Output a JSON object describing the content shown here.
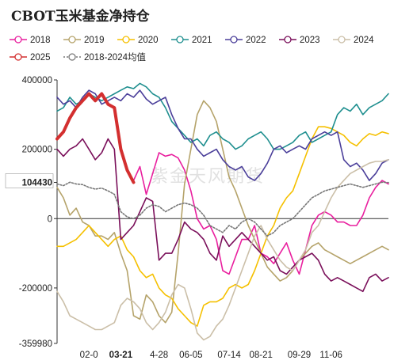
{
  "title": "CBOT玉米基金净持仓",
  "watermark": "紫金天风期货",
  "chart_data": {
    "type": "line",
    "ylim": [
      -359980,
      400000
    ],
    "y_ticks": [
      400000,
      200000,
      104430,
      0,
      -200000,
      -359980
    ],
    "y_tick_labels": [
      "400000",
      "200000",
      "104430",
      "0",
      "-200000",
      "-359980"
    ],
    "highlight_y_label": "104430",
    "highlight_y_color": "#d32f2f",
    "x_range": [
      0,
      52
    ],
    "x_ticks": [
      {
        "label": "02-0",
        "x": 5
      },
      {
        "label": "03-21",
        "x": 10,
        "highlight": true
      },
      {
        "label": "4-28",
        "x": 16
      },
      {
        "label": "06-05",
        "x": 21
      },
      {
        "label": "07-14",
        "x": 27
      },
      {
        "label": "08-21",
        "x": 32
      },
      {
        "label": "09-29",
        "x": 38
      },
      {
        "label": "11-06",
        "x": 43
      }
    ],
    "legend_placement": "top",
    "grid": false,
    "series": [
      {
        "name": "2018",
        "color": "#e91e9e",
        "dash": "",
        "values": [
          null,
          null,
          null,
          null,
          null,
          null,
          null,
          null,
          null,
          null,
          null,
          null,
          110000,
          150000,
          70000,
          130000,
          190000,
          180000,
          185000,
          175000,
          140000,
          80000,
          0,
          -30000,
          -20000,
          -60000,
          -150000,
          -160000,
          -110000,
          -60000,
          -60000,
          -20000,
          -100000,
          -110000,
          -130000,
          -100000,
          -70000,
          -120000,
          -160000,
          -90000,
          -20000,
          10000,
          20000,
          10000,
          -10000,
          -10000,
          -20000,
          -20000,
          10000,
          60000,
          90000,
          110000,
          100000
        ]
      },
      {
        "name": "2019",
        "color": "#b5a36a",
        "dash": "",
        "values": [
          90000,
          60000,
          10000,
          30000,
          -10000,
          -20000,
          -50000,
          -50000,
          -60000,
          -40000,
          -100000,
          -150000,
          -280000,
          -290000,
          -220000,
          -240000,
          -280000,
          -300000,
          -270000,
          -100000,
          100000,
          200000,
          300000,
          340000,
          320000,
          280000,
          200000,
          120000,
          80000,
          30000,
          -20000,
          -60000,
          -100000,
          -140000,
          -160000,
          -180000,
          -170000,
          -150000,
          -120000,
          -100000,
          -80000,
          -70000,
          -90000,
          -100000,
          -110000,
          -120000,
          -130000,
          -120000,
          -110000,
          -100000,
          -90000,
          -80000,
          -90000
        ]
      },
      {
        "name": "2020",
        "color": "#f5c000",
        "dash": "",
        "values": [
          -80000,
          -80000,
          -70000,
          -60000,
          -40000,
          -20000,
          -40000,
          -60000,
          -80000,
          -60000,
          -50000,
          -90000,
          -110000,
          -150000,
          -170000,
          -160000,
          -200000,
          -220000,
          -230000,
          -260000,
          -280000,
          -300000,
          -310000,
          -250000,
          -240000,
          -240000,
          -230000,
          -200000,
          -190000,
          -200000,
          -190000,
          -150000,
          -100000,
          -50000,
          -20000,
          30000,
          60000,
          80000,
          130000,
          180000,
          230000,
          265000,
          265000,
          260000,
          250000,
          240000,
          220000,
          210000,
          230000,
          245000,
          240000,
          250000,
          245000
        ]
      },
      {
        "name": "2021",
        "color": "#1f8f8f",
        "dash": "",
        "values": [
          310000,
          320000,
          350000,
          330000,
          340000,
          360000,
          350000,
          340000,
          350000,
          360000,
          370000,
          380000,
          375000,
          390000,
          380000,
          360000,
          350000,
          320000,
          280000,
          260000,
          240000,
          220000,
          230000,
          210000,
          240000,
          250000,
          230000,
          220000,
          200000,
          210000,
          230000,
          240000,
          250000,
          230000,
          200000,
          200000,
          210000,
          220000,
          240000,
          250000,
          220000,
          230000,
          240000,
          250000,
          300000,
          320000,
          310000,
          330000,
          300000,
          320000,
          330000,
          340000,
          360000
        ]
      },
      {
        "name": "2022",
        "color": "#4b3f9a",
        "dash": "",
        "values": [
          350000,
          330000,
          340000,
          320000,
          350000,
          370000,
          360000,
          330000,
          340000,
          350000,
          340000,
          360000,
          350000,
          370000,
          345000,
          330000,
          340000,
          350000,
          300000,
          260000,
          230000,
          230000,
          200000,
          180000,
          190000,
          200000,
          170000,
          150000,
          140000,
          150000,
          120000,
          110000,
          130000,
          160000,
          200000,
          210000,
          190000,
          200000,
          210000,
          200000,
          230000,
          240000,
          250000,
          240000,
          250000,
          170000,
          150000,
          160000,
          140000,
          110000,
          130000,
          160000,
          170000
        ]
      },
      {
        "name": "2023",
        "color": "#7a0f5a",
        "dash": "",
        "values": [
          200000,
          180000,
          200000,
          210000,
          230000,
          200000,
          170000,
          190000,
          230000,
          200000,
          -60000,
          -40000,
          -20000,
          20000,
          60000,
          50000,
          -120000,
          -100000,
          -100000,
          -60000,
          -10000,
          -30000,
          -40000,
          -60000,
          -100000,
          -120000,
          -50000,
          -80000,
          -60000,
          -40000,
          -60000,
          -80000,
          -100000,
          -120000,
          -110000,
          -150000,
          -160000,
          -140000,
          -120000,
          -110000,
          -100000,
          -120000,
          -160000,
          -180000,
          -170000,
          -180000,
          -190000,
          -200000,
          -210000,
          -170000,
          -160000,
          -180000,
          -170000
        ]
      },
      {
        "name": "2024",
        "color": "#cbbfa8",
        "dash": "",
        "values": [
          -210000,
          -240000,
          -280000,
          -290000,
          -300000,
          -310000,
          -320000,
          -320000,
          -310000,
          -300000,
          -250000,
          -230000,
          -240000,
          -260000,
          -300000,
          -320000,
          -300000,
          -270000,
          -220000,
          -190000,
          -200000,
          -260000,
          -330000,
          -350000,
          -340000,
          -310000,
          -290000,
          -250000,
          -200000,
          -150000,
          -100000,
          -50000,
          -20000,
          -60000,
          -90000,
          -120000,
          -140000,
          -150000,
          -120000,
          -90000,
          -40000,
          -20000,
          20000,
          60000,
          90000,
          110000,
          130000,
          140000,
          150000,
          160000,
          165000,
          165000,
          170000
        ]
      },
      {
        "name": "2025",
        "color": "#d32f2f",
        "dash": "",
        "width": 4,
        "values": [
          230000,
          250000,
          290000,
          320000,
          340000,
          360000,
          340000,
          360000,
          330000,
          320000,
          200000,
          140000,
          104430
        ]
      },
      {
        "name": "2018-2024均值",
        "color": "#777777",
        "dash": "2,2",
        "values": [
          100000,
          95000,
          105000,
          100000,
          98000,
          90000,
          85000,
          88000,
          80000,
          70000,
          20000,
          5000,
          0,
          10000,
          30000,
          40000,
          35000,
          20000,
          30000,
          40000,
          45000,
          40000,
          30000,
          10000,
          -20000,
          -30000,
          -40000,
          -20000,
          -30000,
          -10000,
          0,
          -10000,
          -30000,
          -50000,
          -40000,
          -20000,
          -10000,
          0,
          20000,
          40000,
          60000,
          70000,
          80000,
          85000,
          90000,
          95000,
          100000,
          95000,
          90000,
          95000,
          100000,
          105000,
          104000
        ]
      }
    ]
  }
}
